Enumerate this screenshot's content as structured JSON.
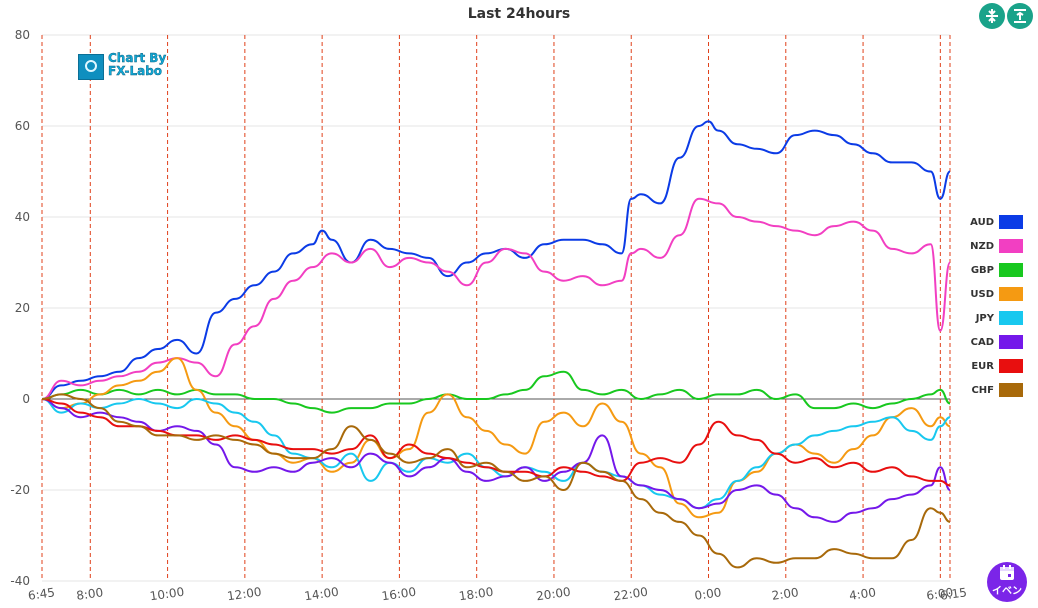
{
  "chart_data": {
    "type": "line",
    "title": "Last 24hours",
    "xlabel": "",
    "ylabel": "",
    "ylim": [
      -40,
      80
    ],
    "yticks": [
      -40,
      -20,
      0,
      20,
      40,
      60,
      80
    ],
    "x_tick_labels": [
      "6:45",
      "8:00",
      "10:00",
      "12:00",
      "14:00",
      "16:00",
      "18:00",
      "20:00",
      "22:00",
      "0:00",
      "2:00",
      "4:00",
      "6:00",
      "6:15"
    ],
    "x_tick_hours": [
      0,
      1.25,
      3.25,
      5.25,
      7.25,
      9.25,
      11.25,
      13.25,
      15.25,
      17.25,
      19.25,
      21.25,
      23.25,
      23.5
    ],
    "x_start": "6:45",
    "x_end": "6:15",
    "vertical_markers": "dashed red lines at each labeled hour",
    "grid": "horizontal",
    "legend_position": "right",
    "series": [
      {
        "name": "AUD",
        "color": "#0b3be6",
        "x": [
          0,
          0.5,
          1,
          1.5,
          2,
          2.5,
          3,
          3.5,
          4,
          4.5,
          5,
          5.5,
          6,
          6.5,
          7,
          7.25,
          7.5,
          8,
          8.5,
          9,
          9.5,
          10,
          10.5,
          11,
          11.5,
          12,
          12.5,
          13,
          13.5,
          14,
          14.5,
          15,
          15.25,
          15.5,
          16,
          16.5,
          17,
          17.25,
          17.5,
          18,
          18.5,
          19,
          19.5,
          20,
          20.5,
          21,
          21.5,
          22,
          22.5,
          23,
          23.25,
          23.5
        ],
        "values": [
          0,
          3,
          4,
          5,
          6,
          9,
          11,
          13,
          10,
          19,
          22,
          25,
          28,
          32,
          34,
          37,
          35,
          30,
          35,
          33,
          32,
          31,
          27,
          30,
          32,
          33,
          31,
          34,
          35,
          35,
          34,
          32,
          44,
          45,
          43,
          53,
          60,
          61,
          59,
          56,
          55,
          54,
          58,
          59,
          58,
          56,
          54,
          52,
          52,
          50,
          44,
          50
        ]
      },
      {
        "name": "NZD",
        "color": "#f23fc2",
        "x": [
          0,
          0.5,
          1,
          1.5,
          2,
          2.5,
          3,
          3.5,
          4,
          4.5,
          5,
          5.5,
          6,
          6.5,
          7,
          7.5,
          8,
          8.5,
          9,
          9.5,
          10,
          10.5,
          11,
          11.5,
          12,
          12.5,
          13,
          13.5,
          14,
          14.5,
          15,
          15.25,
          15.5,
          16,
          16.5,
          17,
          17.5,
          18,
          18.5,
          19,
          19.5,
          20,
          20.5,
          21,
          21.5,
          22,
          22.5,
          23,
          23.25,
          23.5
        ],
        "values": [
          0,
          4,
          3,
          4,
          5,
          6,
          8,
          9,
          8,
          5,
          12,
          16,
          22,
          26,
          29,
          32,
          30,
          33,
          29,
          31,
          30,
          28,
          25,
          30,
          33,
          32,
          28,
          26,
          27,
          25,
          26,
          32,
          33,
          31,
          36,
          44,
          43,
          40,
          39,
          38,
          37,
          36,
          38,
          39,
          37,
          33,
          32,
          34,
          15,
          30
        ]
      },
      {
        "name": "GBP",
        "color": "#18c81f",
        "x": [
          0,
          0.5,
          1,
          1.5,
          2,
          2.5,
          3,
          3.5,
          4,
          4.5,
          5,
          5.5,
          6,
          6.5,
          7,
          7.5,
          8,
          8.5,
          9,
          9.5,
          10,
          10.5,
          11,
          11.5,
          12,
          12.5,
          13,
          13.5,
          14,
          14.5,
          15,
          15.5,
          16,
          16.5,
          17,
          17.5,
          18,
          18.5,
          19,
          19.5,
          20,
          20.5,
          21,
          21.5,
          22,
          22.5,
          23,
          23.25,
          23.5
        ],
        "values": [
          0,
          1,
          2,
          1,
          2,
          1,
          2,
          1,
          2,
          1,
          1,
          0,
          0,
          -1,
          -2,
          -3,
          -2,
          -2,
          -1,
          -1,
          0,
          1,
          0,
          0,
          1,
          2,
          5,
          6,
          2,
          1,
          2,
          0,
          1,
          2,
          0,
          1,
          1,
          2,
          0,
          1,
          -2,
          -2,
          -1,
          -2,
          -1,
          0,
          1,
          2,
          -1
        ]
      },
      {
        "name": "USD",
        "color": "#f59a12",
        "x": [
          0,
          0.5,
          1,
          1.5,
          2,
          2.5,
          3,
          3.5,
          4,
          4.5,
          5,
          5.5,
          6,
          6.5,
          7,
          7.5,
          8,
          8.5,
          9,
          9.5,
          10,
          10.5,
          11,
          11.5,
          12,
          12.5,
          13,
          13.5,
          14,
          14.5,
          15,
          15.5,
          16,
          16.5,
          17,
          17.5,
          18,
          18.5,
          19,
          19.5,
          20,
          20.5,
          21,
          21.5,
          22,
          22.5,
          23,
          23.25,
          23.5
        ],
        "values": [
          0,
          -2,
          -1,
          1,
          3,
          4,
          6,
          9,
          2,
          -3,
          -6,
          -9,
          -12,
          -14,
          -13,
          -16,
          -14,
          -9,
          -13,
          -11,
          -3,
          1,
          -4,
          -7,
          -10,
          -12,
          -5,
          -3,
          -6,
          -1,
          -5,
          -12,
          -15,
          -23,
          -26,
          -25,
          -18,
          -16,
          -12,
          -10,
          -12,
          -14,
          -11,
          -8,
          -4,
          -2,
          -6,
          -4,
          -6
        ]
      },
      {
        "name": "JPY",
        "color": "#18c8ef",
        "x": [
          0,
          0.5,
          1,
          1.5,
          2,
          2.5,
          3,
          3.5,
          4,
          4.5,
          5,
          5.5,
          6,
          6.5,
          7,
          7.5,
          8,
          8.5,
          9,
          9.5,
          10,
          10.5,
          11,
          11.5,
          12,
          12.5,
          13,
          13.5,
          14,
          14.5,
          15,
          15.5,
          16,
          16.5,
          17,
          17.5,
          18,
          18.5,
          19,
          19.5,
          20,
          20.5,
          21,
          21.5,
          22,
          22.5,
          23,
          23.25,
          23.5
        ],
        "values": [
          0,
          -3,
          -1,
          -2,
          -1,
          0,
          -1,
          -2,
          0,
          -1,
          -3,
          -5,
          -8,
          -12,
          -13,
          -15,
          -12,
          -18,
          -14,
          -16,
          -13,
          -14,
          -12,
          -15,
          -17,
          -15,
          -16,
          -18,
          -14,
          -16,
          -17,
          -19,
          -21,
          -22,
          -24,
          -22,
          -18,
          -15,
          -12,
          -10,
          -8,
          -7,
          -6,
          -5,
          -4,
          -7,
          -9,
          -6,
          -4
        ]
      },
      {
        "name": "CAD",
        "color": "#7418ea",
        "x": [
          0,
          0.5,
          1,
          1.5,
          2,
          2.5,
          3,
          3.5,
          4,
          4.5,
          5,
          5.5,
          6,
          6.5,
          7,
          7.5,
          8,
          8.5,
          9,
          9.5,
          10,
          10.5,
          11,
          11.5,
          12,
          12.5,
          13,
          13.5,
          14,
          14.5,
          15,
          15.5,
          16,
          16.5,
          17,
          17.5,
          18,
          18.5,
          19,
          19.5,
          20,
          20.5,
          21,
          21.5,
          22,
          22.5,
          23,
          23.25,
          23.5
        ],
        "values": [
          0,
          -2,
          -4,
          -3,
          -4,
          -5,
          -7,
          -6,
          -7,
          -10,
          -15,
          -16,
          -15,
          -16,
          -14,
          -13,
          -15,
          -12,
          -14,
          -17,
          -15,
          -13,
          -16,
          -18,
          -17,
          -15,
          -18,
          -16,
          -14,
          -8,
          -17,
          -19,
          -20,
          -22,
          -24,
          -23,
          -20,
          -19,
          -21,
          -24,
          -26,
          -27,
          -25,
          -24,
          -22,
          -21,
          -19,
          -15,
          -20
        ]
      },
      {
        "name": "EUR",
        "color": "#e80f0f",
        "x": [
          0,
          0.5,
          1,
          1.5,
          2,
          2.5,
          3,
          3.5,
          4,
          4.5,
          5,
          5.5,
          6,
          6.5,
          7,
          7.5,
          8,
          8.5,
          9,
          9.5,
          10,
          10.5,
          11,
          11.5,
          12,
          12.5,
          13,
          13.5,
          14,
          14.5,
          15,
          15.5,
          16,
          16.5,
          17,
          17.5,
          18,
          18.5,
          19,
          19.5,
          20,
          20.5,
          21,
          21.5,
          22,
          22.5,
          23,
          23.25,
          23.5
        ],
        "values": [
          0,
          -1,
          -3,
          -4,
          -6,
          -6,
          -7,
          -8,
          -8,
          -9,
          -8,
          -9,
          -10,
          -11,
          -11,
          -12,
          -11,
          -8,
          -13,
          -10,
          -12,
          -13,
          -14,
          -15,
          -16,
          -16,
          -17,
          -15,
          -16,
          -17,
          -18,
          -14,
          -13,
          -14,
          -10,
          -5,
          -8,
          -9,
          -12,
          -14,
          -13,
          -15,
          -14,
          -16,
          -15,
          -17,
          -18,
          -18,
          -19
        ]
      },
      {
        "name": "CHF",
        "color": "#a8690a",
        "x": [
          0,
          0.5,
          1,
          1.5,
          2,
          2.5,
          3,
          3.5,
          4,
          4.5,
          5,
          5.5,
          6,
          6.5,
          7,
          7.5,
          8,
          8.5,
          9,
          9.5,
          10,
          10.5,
          11,
          11.5,
          12,
          12.5,
          13,
          13.5,
          14,
          14.5,
          15,
          15.5,
          16,
          16.5,
          17,
          17.5,
          18,
          18.5,
          19,
          19.5,
          20,
          20.5,
          21,
          21.5,
          22,
          22.5,
          23,
          23.25,
          23.5
        ],
        "values": [
          0,
          1,
          0,
          -2,
          -5,
          -6,
          -8,
          -8,
          -9,
          -8,
          -9,
          -10,
          -12,
          -13,
          -13,
          -11,
          -6,
          -9,
          -12,
          -14,
          -13,
          -11,
          -15,
          -14,
          -16,
          -18,
          -17,
          -20,
          -14,
          -16,
          -18,
          -22,
          -25,
          -27,
          -30,
          -34,
          -37,
          -35,
          -36,
          -35,
          -35,
          -33,
          -34,
          -35,
          -35,
          -31,
          -24,
          -25,
          -27
        ]
      }
    ]
  },
  "logo": {
    "line1": "Chart By",
    "line2": "FX-Labo"
  },
  "toolbar": {
    "compress_icon": "compress-vertical-icon",
    "expand_icon": "align-top-icon"
  },
  "event_button": {
    "label": "イベン",
    "icon": "calendar-icon",
    "color": "#7b25e8"
  }
}
